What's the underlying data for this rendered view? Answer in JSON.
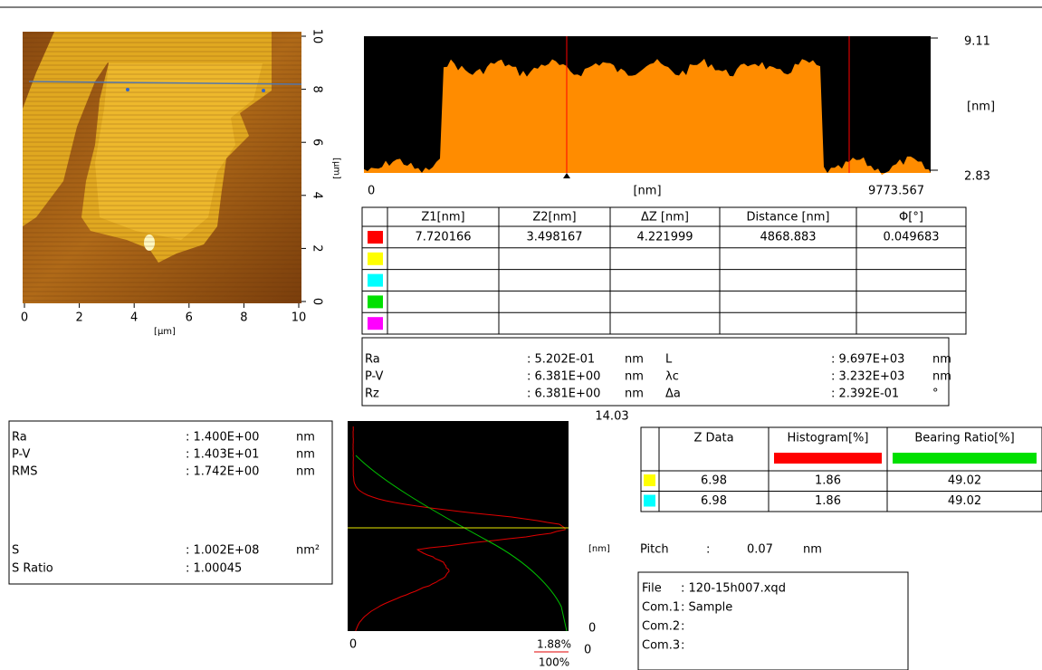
{
  "image": {
    "x_ticks": [
      "0",
      "2",
      "4",
      "6",
      "8",
      "10"
    ],
    "y_ticks": [
      "0",
      "2",
      "4",
      "6",
      "8",
      "10"
    ],
    "x_unit": "[µm]",
    "y_unit": "[µm]"
  },
  "profile": {
    "z_max": "9.11",
    "z_unit": "[nm]",
    "z_min": "2.83",
    "x_start": "0",
    "x_unit": "[nm]",
    "x_end": "9773.567"
  },
  "cursor_table": {
    "headers": [
      "Z1[nm]",
      "Z2[nm]",
      "ΔZ [nm]",
      "Distance [nm]",
      "Φ[°]"
    ],
    "rows": [
      {
        "color": "#ff0000",
        "cells": [
          "7.720166",
          "3.498167",
          "4.221999",
          "4868.883",
          "0.049683"
        ]
      },
      {
        "color": "#ffff00",
        "cells": []
      },
      {
        "color": "#00ffff",
        "cells": []
      },
      {
        "color": "#00e000",
        "cells": []
      },
      {
        "color": "#ff00ff",
        "cells": []
      }
    ]
  },
  "line_roughness": {
    "rows": [
      {
        "label": "Ra",
        "value": ": 5.202E-01",
        "unit": "nm",
        "label2": "L",
        "value2": ": 9.697E+03",
        "unit2": "nm"
      },
      {
        "label": "P-V",
        "value": ": 6.381E+00",
        "unit": "nm",
        "label2": "λc",
        "value2": ": 3.232E+03",
        "unit2": "nm"
      },
      {
        "label": "Rz",
        "value": ": 6.381E+00",
        "unit": "nm",
        "label2": "Δa",
        "value2": ": 2.392E-01",
        "unit2": "°"
      }
    ],
    "note": "14.03"
  },
  "area_roughness": {
    "rows": [
      {
        "label": "Ra",
        "value": ": 1.400E+00",
        "unit": "nm"
      },
      {
        "label": "P-V",
        "value": ": 1.403E+01",
        "unit": "nm"
      },
      {
        "label": "RMS",
        "value": ": 1.742E+00",
        "unit": "nm"
      },
      {
        "label": "S",
        "value": ": 1.002E+08",
        "unit": "nm²"
      },
      {
        "label": "S Ratio",
        "value": ": 1.00045"
      }
    ]
  },
  "histogram": {
    "z_unit": "[nm]",
    "z_min": "0",
    "x_start": "0",
    "hist_max": "1.88%",
    "bearing_max": "100%",
    "bottom_zero": "0"
  },
  "histogram_table": {
    "headers": [
      "Z Data",
      "Histogram[%]",
      "Bearing Ratio[%]"
    ],
    "header_colors": [
      "#ff0000",
      "#00e000"
    ],
    "rows": [
      {
        "color": "#ffff00",
        "cells": [
          "6.98",
          "1.86",
          "49.02"
        ]
      },
      {
        "color": "#00ffff",
        "cells": [
          "6.98",
          "1.86",
          "49.02"
        ]
      }
    ]
  },
  "pitch": {
    "label": "Pitch",
    "separator": ":",
    "value": "0.07",
    "unit": "nm"
  },
  "file_info": {
    "rows": [
      {
        "label": "File",
        "value": ": 120-15h007.xqd"
      },
      {
        "label": "Com.1",
        "value": ": Sample"
      },
      {
        "label": "Com.2",
        "value": ":"
      },
      {
        "label": "Com.3",
        "value": ":"
      }
    ]
  }
}
